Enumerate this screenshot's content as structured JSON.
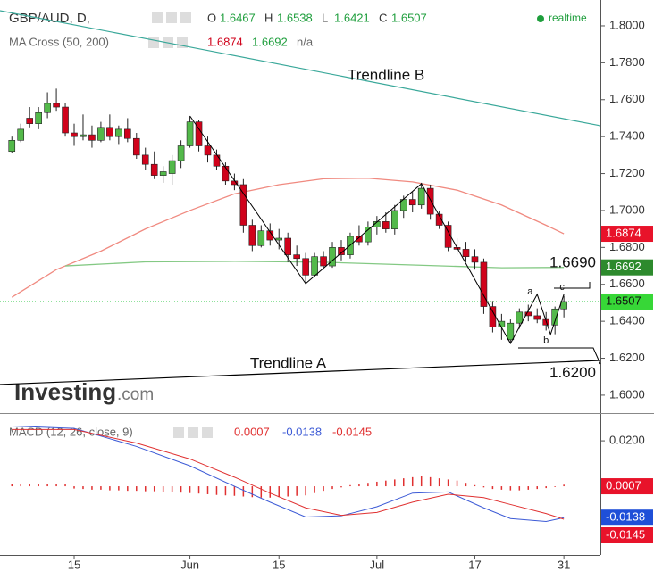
{
  "chart_data": {
    "type": "candlestick",
    "symbol": "GBP/AUD, D,",
    "ohlc_labels": [
      "O",
      "H",
      "L",
      "C"
    ],
    "status": "realtime",
    "up_color": "#53b94a",
    "down_color": "#d0021b",
    "xlim": [
      -1.33,
      66.1
    ],
    "xticks": [
      {
        "value": 7,
        "label": "15"
      },
      {
        "value": 20,
        "label": "Jun"
      },
      {
        "value": 30,
        "label": "15"
      },
      {
        "value": 41,
        "label": "Jul"
      },
      {
        "value": 52,
        "label": "17"
      },
      {
        "value": 62,
        "label": "31"
      }
    ],
    "ylim": [
      1.5903,
      1.814
    ],
    "yticks": [
      {
        "value": 1.6,
        "label": "1.6000"
      },
      {
        "value": 1.62,
        "label": "1.6200"
      },
      {
        "value": 1.64,
        "label": "1.6400"
      },
      {
        "value": 1.66,
        "label": "1.6600"
      },
      {
        "value": 1.68,
        "label": "1.6800"
      },
      {
        "value": 1.7,
        "label": "1.7000"
      },
      {
        "value": 1.72,
        "label": "1.7200"
      },
      {
        "value": 1.74,
        "label": "1.7400"
      },
      {
        "value": 1.76,
        "label": "1.7600"
      },
      {
        "value": 1.78,
        "label": "1.7800"
      },
      {
        "value": 1.8,
        "label": "1.8000"
      }
    ],
    "candles": [
      {
        "open": 1.732,
        "high": 1.74,
        "low": 1.731,
        "close": 1.738
      },
      {
        "open": 1.738,
        "high": 1.747,
        "low": 1.737,
        "close": 1.744
      },
      {
        "open": 1.75,
        "high": 1.756,
        "low": 1.745,
        "close": 1.747
      },
      {
        "open": 1.747,
        "high": 1.756,
        "low": 1.744,
        "close": 1.753
      },
      {
        "open": 1.753,
        "high": 1.764,
        "low": 1.75,
        "close": 1.758
      },
      {
        "open": 1.758,
        "high": 1.766,
        "low": 1.754,
        "close": 1.756
      },
      {
        "open": 1.756,
        "high": 1.758,
        "low": 1.74,
        "close": 1.742
      },
      {
        "open": 1.742,
        "high": 1.747,
        "low": 1.735,
        "close": 1.74
      },
      {
        "open": 1.74,
        "high": 1.752,
        "low": 1.738,
        "close": 1.741
      },
      {
        "open": 1.741,
        "high": 1.746,
        "low": 1.734,
        "close": 1.738
      },
      {
        "open": 1.738,
        "high": 1.748,
        "low": 1.737,
        "close": 1.745
      },
      {
        "open": 1.745,
        "high": 1.752,
        "low": 1.738,
        "close": 1.74
      },
      {
        "open": 1.74,
        "high": 1.746,
        "low": 1.736,
        "close": 1.744
      },
      {
        "open": 1.744,
        "high": 1.75,
        "low": 1.737,
        "close": 1.739
      },
      {
        "open": 1.739,
        "high": 1.742,
        "low": 1.728,
        "close": 1.73
      },
      {
        "open": 1.73,
        "high": 1.734,
        "low": 1.722,
        "close": 1.725
      },
      {
        "open": 1.725,
        "high": 1.732,
        "low": 1.717,
        "close": 1.719
      },
      {
        "open": 1.719,
        "high": 1.724,
        "low": 1.715,
        "close": 1.721
      },
      {
        "open": 1.72,
        "high": 1.73,
        "low": 1.714,
        "close": 1.727
      },
      {
        "open": 1.727,
        "high": 1.738,
        "low": 1.723,
        "close": 1.735
      },
      {
        "open": 1.735,
        "high": 1.751,
        "low": 1.734,
        "close": 1.748
      },
      {
        "open": 1.748,
        "high": 1.749,
        "low": 1.732,
        "close": 1.735
      },
      {
        "open": 1.735,
        "high": 1.74,
        "low": 1.726,
        "close": 1.73
      },
      {
        "open": 1.73,
        "high": 1.733,
        "low": 1.722,
        "close": 1.724
      },
      {
        "open": 1.724,
        "high": 1.726,
        "low": 1.714,
        "close": 1.716
      },
      {
        "open": 1.716,
        "high": 1.72,
        "low": 1.711,
        "close": 1.714
      },
      {
        "open": 1.714,
        "high": 1.717,
        "low": 1.688,
        "close": 1.692
      },
      {
        "open": 1.692,
        "high": 1.695,
        "low": 1.678,
        "close": 1.681
      },
      {
        "open": 1.681,
        "high": 1.692,
        "low": 1.68,
        "close": 1.689
      },
      {
        "open": 1.689,
        "high": 1.693,
        "low": 1.681,
        "close": 1.684
      },
      {
        "open": 1.684,
        "high": 1.69,
        "low": 1.679,
        "close": 1.685
      },
      {
        "open": 1.685,
        "high": 1.688,
        "low": 1.672,
        "close": 1.676
      },
      {
        "open": 1.676,
        "high": 1.681,
        "low": 1.67,
        "close": 1.674
      },
      {
        "open": 1.674,
        "high": 1.677,
        "low": 1.661,
        "close": 1.665
      },
      {
        "open": 1.665,
        "high": 1.677,
        "low": 1.664,
        "close": 1.675
      },
      {
        "open": 1.675,
        "high": 1.678,
        "low": 1.668,
        "close": 1.67
      },
      {
        "open": 1.67,
        "high": 1.683,
        "low": 1.669,
        "close": 1.68
      },
      {
        "open": 1.68,
        "high": 1.684,
        "low": 1.673,
        "close": 1.676
      },
      {
        "open": 1.676,
        "high": 1.688,
        "low": 1.674,
        "close": 1.686
      },
      {
        "open": 1.686,
        "high": 1.692,
        "low": 1.681,
        "close": 1.683
      },
      {
        "open": 1.683,
        "high": 1.694,
        "low": 1.681,
        "close": 1.691
      },
      {
        "open": 1.691,
        "high": 1.697,
        "low": 1.687,
        "close": 1.694
      },
      {
        "open": 1.694,
        "high": 1.699,
        "low": 1.688,
        "close": 1.69
      },
      {
        "open": 1.69,
        "high": 1.703,
        "low": 1.687,
        "close": 1.7
      },
      {
        "open": 1.7,
        "high": 1.708,
        "low": 1.696,
        "close": 1.706
      },
      {
        "open": 1.706,
        "high": 1.71,
        "low": 1.699,
        "close": 1.703
      },
      {
        "open": 1.703,
        "high": 1.715,
        "low": 1.701,
        "close": 1.712
      },
      {
        "open": 1.712,
        "high": 1.714,
        "low": 1.695,
        "close": 1.698
      },
      {
        "open": 1.698,
        "high": 1.7,
        "low": 1.69,
        "close": 1.692
      },
      {
        "open": 1.692,
        "high": 1.694,
        "low": 1.678,
        "close": 1.68
      },
      {
        "open": 1.68,
        "high": 1.685,
        "low": 1.676,
        "close": 1.679
      },
      {
        "open": 1.679,
        "high": 1.683,
        "low": 1.672,
        "close": 1.675
      },
      {
        "open": 1.675,
        "high": 1.679,
        "low": 1.668,
        "close": 1.672
      },
      {
        "open": 1.672,
        "high": 1.674,
        "low": 1.644,
        "close": 1.648
      },
      {
        "open": 1.648,
        "high": 1.651,
        "low": 1.634,
        "close": 1.637
      },
      {
        "open": 1.637,
        "high": 1.644,
        "low": 1.63,
        "close": 1.64
      },
      {
        "open": 1.63,
        "high": 1.641,
        "low": 1.628,
        "close": 1.639
      },
      {
        "open": 1.639,
        "high": 1.647,
        "low": 1.636,
        "close": 1.645
      },
      {
        "open": 1.645,
        "high": 1.649,
        "low": 1.64,
        "close": 1.643
      },
      {
        "open": 1.643,
        "high": 1.647,
        "low": 1.639,
        "close": 1.641
      },
      {
        "open": 1.641,
        "high": 1.645,
        "low": 1.635,
        "close": 1.638
      },
      {
        "open": 1.638,
        "high": 1.648,
        "low": 1.633,
        "close": 1.6467
      },
      {
        "open": 1.6467,
        "high": 1.6538,
        "low": 1.6421,
        "close": 1.6507
      }
    ],
    "indicator": "MA Cross (50, 200)",
    "ma_na": "n/a",
    "ma_series": [
      {
        "color": "#f08a80",
        "x": [
          0,
          5,
          10,
          15,
          20,
          25,
          30,
          35,
          40,
          45,
          50,
          55,
          60,
          62
        ],
        "values": [
          1.653,
          1.668,
          1.678,
          1.69,
          1.7,
          1.709,
          1.714,
          1.7172,
          1.7175,
          1.7155,
          1.711,
          1.703,
          1.692,
          1.6874
        ]
      },
      {
        "color": "#84c984",
        "x": [
          6,
          15,
          25,
          35,
          45,
          55,
          62
        ],
        "values": [
          1.67,
          1.6722,
          1.6725,
          1.672,
          1.6705,
          1.669,
          1.6692
        ]
      }
    ],
    "price_line_color": "#22c43a",
    "trendlines": [
      {
        "label": "Trendline B",
        "color": "#3aa89a",
        "x": [
          -1.33,
          66.1
        ],
        "values": [
          1.8082,
          1.7459
        ]
      },
      {
        "label": "Trendline A",
        "color": "#000000",
        "x": [
          -1.33,
          66.1
        ],
        "values": [
          1.6058,
          1.6188
        ]
      }
    ],
    "zigzag": {
      "color": "#000000",
      "x": [
        20,
        33,
        46,
        56,
        59,
        60.5,
        62
      ],
      "values": [
        1.7512,
        1.6604,
        1.7145,
        1.628,
        1.6546,
        1.6329,
        1.6546
      ]
    },
    "pattern_labels": [
      {
        "label": "a",
        "x": 58.2,
        "value": 1.656
      },
      {
        "label": "b",
        "x": 60,
        "value": 1.6295
      },
      {
        "label": "c",
        "x": 61.8,
        "value": 1.6585
      }
    ],
    "annotations": [
      {
        "value": 1.669,
        "label": "1.6690"
      },
      {
        "value": 1.62,
        "label": "1.6200"
      }
    ],
    "brand": "Investing",
    "brand_suffix": ".com",
    "macd": {
      "title": "MACD (12, 26, close, 9)",
      "ylim": [
        -0.0302,
        0.0322
      ],
      "yticks": [
        {
          "value": 0.02,
          "label": "0.0200"
        }
      ],
      "histogram_color": "#e03030",
      "histogram": [
        0.001,
        0.0012,
        0.0012,
        0.001,
        0.0011,
        0.001,
        0.0008,
        -0.001,
        -0.0012,
        -0.0015,
        -0.0015,
        -0.0018,
        -0.0018,
        -0.002,
        -0.002,
        -0.0022,
        -0.0022,
        -0.0024,
        -0.0025,
        -0.0028,
        -0.003,
        -0.0032,
        -0.0035,
        -0.0038,
        -0.004,
        -0.0042,
        -0.0045,
        -0.0048,
        -0.005,
        -0.005,
        -0.0048,
        -0.0045,
        -0.0042,
        -0.004,
        -0.003,
        -0.002,
        -0.0012,
        -0.0005,
        0.0005,
        0.001,
        0.0015,
        0.002,
        0.0025,
        0.003,
        0.0035,
        0.004,
        0.0045,
        0.004,
        0.0035,
        0.003,
        0.0025,
        0.0015,
        0.0005,
        -0.0005,
        -0.0012,
        -0.0015,
        -0.0018,
        -0.0018,
        -0.0015,
        -0.0012,
        -0.0008,
        -0.0003,
        0.0007
      ],
      "x": [
        0,
        7,
        14,
        20,
        25,
        29,
        33,
        37,
        41,
        45,
        49,
        53,
        56,
        60,
        62
      ],
      "macd_color": "#3d5bd6",
      "macd": [
        0.0265,
        0.0255,
        0.0175,
        0.009,
        0.0,
        -0.007,
        -0.0135,
        -0.013,
        -0.009,
        -0.003,
        -0.0025,
        -0.0095,
        -0.0142,
        -0.0155,
        -0.0138
      ],
      "signal_color": "#e03030",
      "signal": [
        0.025,
        0.025,
        0.019,
        0.012,
        0.004,
        -0.003,
        -0.0095,
        -0.0128,
        -0.0115,
        -0.007,
        -0.0035,
        -0.005,
        -0.008,
        -0.012,
        -0.0145
      ]
    }
  }
}
